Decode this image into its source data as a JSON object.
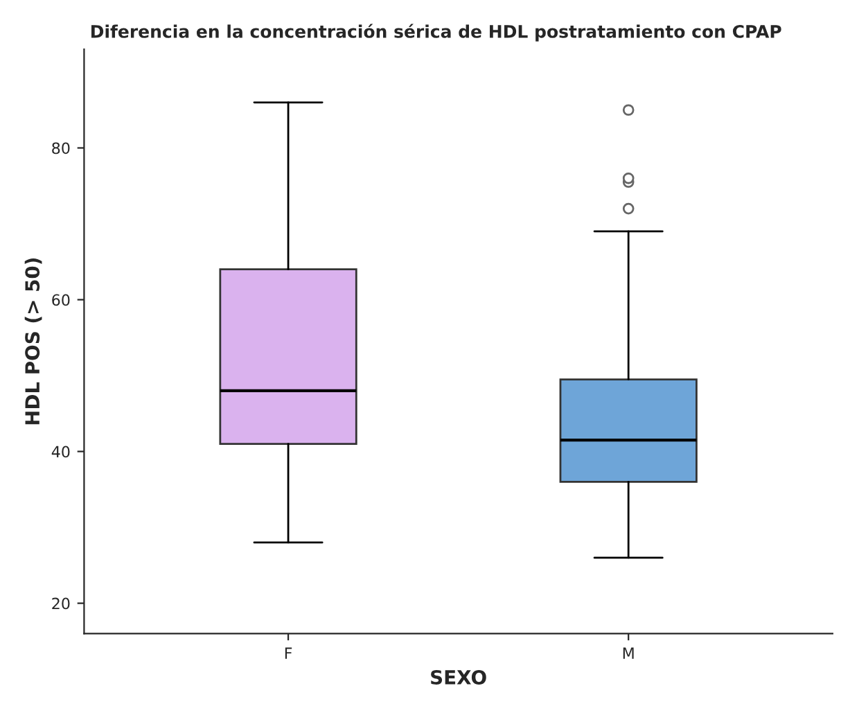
{
  "chart_data": {
    "type": "box",
    "title": "Diferencia en la concentración sérica de HDL postratamiento con CPAP",
    "xlabel": "SEXO",
    "ylabel": "HDL POS (> 50)",
    "categories": [
      "F",
      "M"
    ],
    "colors": [
      "#dab2ee",
      "#6ea5d8"
    ],
    "boxes": [
      {
        "low": 28,
        "q1": 41,
        "median": 48,
        "q3": 64,
        "high": 86
      },
      {
        "low": 26,
        "q1": 36,
        "median": 41.5,
        "q3": 49.5,
        "high": 69,
        "outliers": [
          72,
          75.5,
          76,
          85
        ]
      }
    ],
    "ylim": [
      16,
      93
    ],
    "yticks": [
      20,
      40,
      60,
      80
    ],
    "grid": false
  }
}
